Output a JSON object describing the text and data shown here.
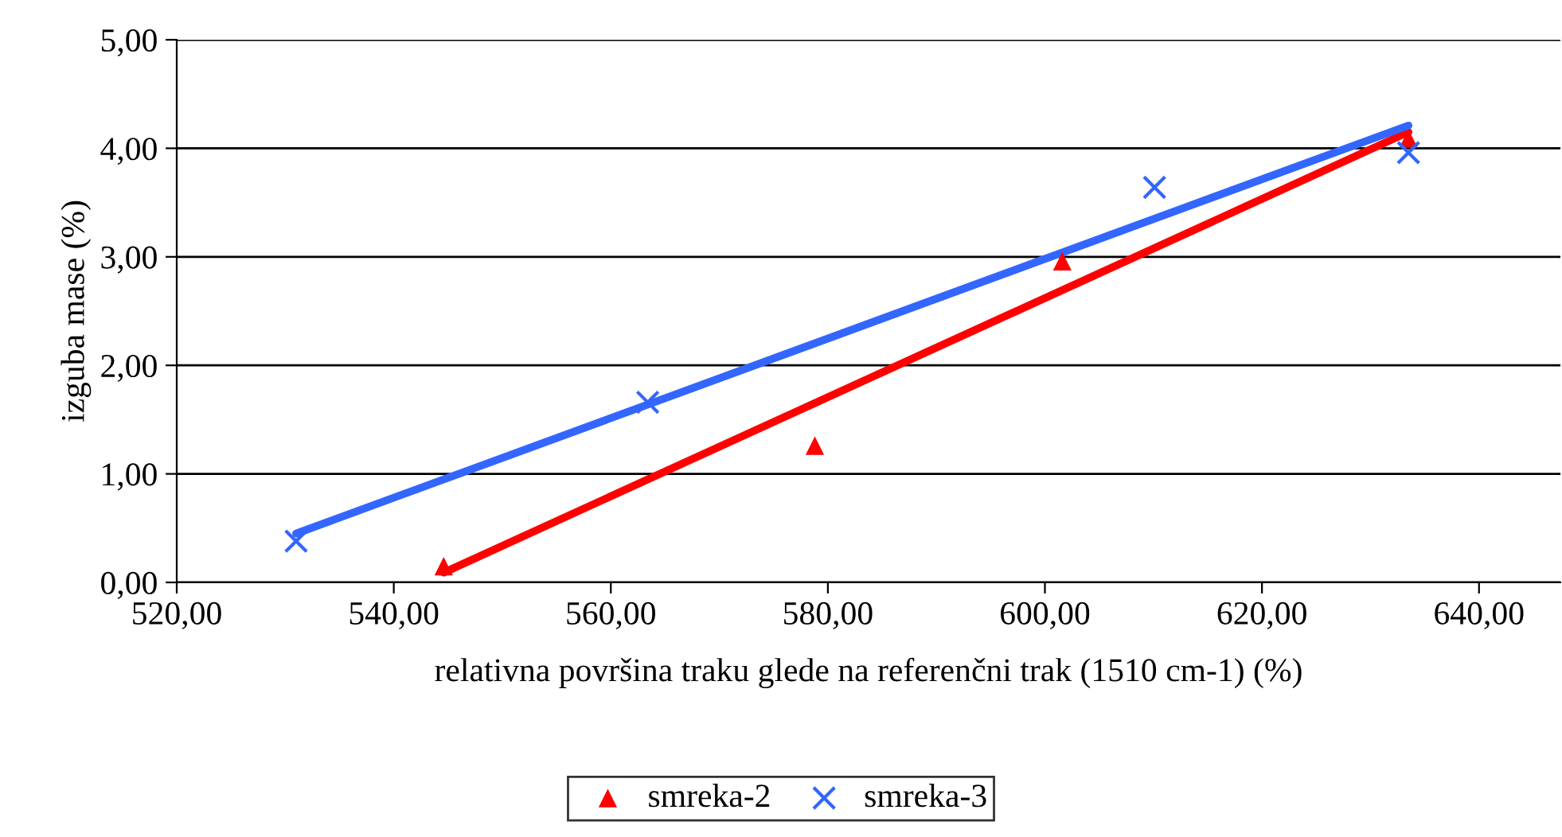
{
  "chart_data": {
    "type": "scatter",
    "xlabel": "relativna površina traku glede na referenčni trak (1510 cm-1) (%)",
    "ylabel": "izguba mase (%)",
    "xlim": [
      520,
      647.5
    ],
    "ylim": [
      0,
      5
    ],
    "xticks": [
      {
        "value": 520,
        "label": "520,00"
      },
      {
        "value": 540,
        "label": "540,00"
      },
      {
        "value": 560,
        "label": "560,00"
      },
      {
        "value": 580,
        "label": "580,00"
      },
      {
        "value": 600,
        "label": "600,00"
      },
      {
        "value": 620,
        "label": "620,00"
      },
      {
        "value": 640,
        "label": "640,00"
      }
    ],
    "yticks": [
      {
        "value": 0,
        "label": "0,00"
      },
      {
        "value": 1,
        "label": "1,00"
      },
      {
        "value": 2,
        "label": "2,00"
      },
      {
        "value": 3,
        "label": "3,00"
      },
      {
        "value": 4,
        "label": "4,00"
      },
      {
        "value": 5,
        "label": "5,00"
      }
    ],
    "grid": "y",
    "legend": "bottom",
    "series": [
      {
        "name": "smreka-2",
        "color": "#ff0000",
        "marker": "triangle",
        "x": [
          544.6,
          578.8,
          601.6,
          633.5
        ],
        "values": [
          0.15,
          1.26,
          2.96,
          4.09
        ]
      },
      {
        "name": "smreka-3",
        "color": "#3366ff",
        "marker": "cross",
        "x": [
          531.0,
          563.4,
          610.1,
          633.5
        ],
        "values": [
          0.38,
          1.66,
          3.64,
          3.96
        ]
      },
      {
        "type": "line",
        "color": "#ff0000",
        "x": [
          544.6,
          633.5
        ],
        "values": [
          0.09,
          4.15
        ]
      },
      {
        "type": "line",
        "color": "#3366ff",
        "x": [
          531.0,
          633.5
        ],
        "values": [
          0.45,
          4.21
        ]
      }
    ]
  }
}
